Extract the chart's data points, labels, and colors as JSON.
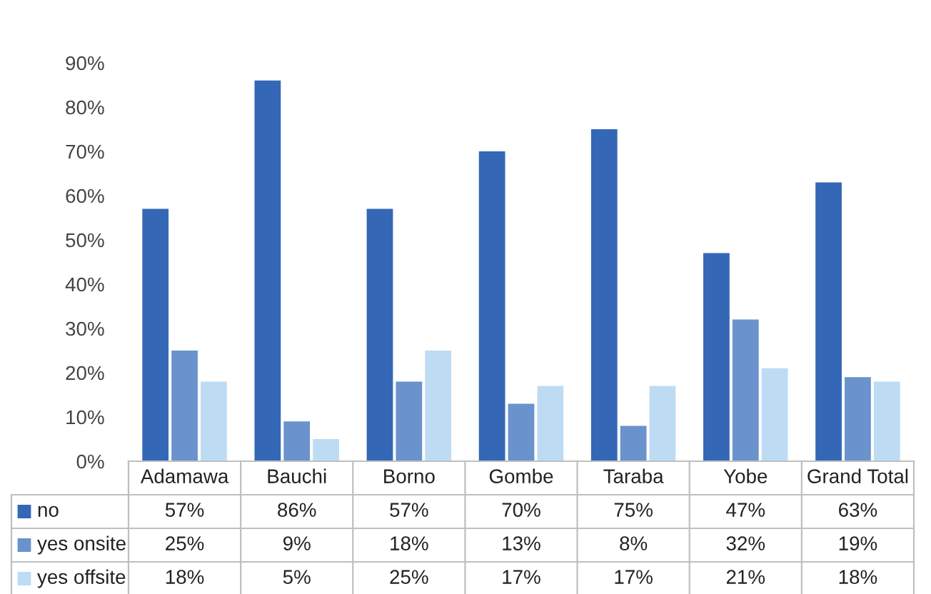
{
  "chart_data": {
    "type": "bar",
    "categories": [
      "Adamawa",
      "Bauchi",
      "Borno",
      "Gombe",
      "Taraba",
      "Yobe",
      "Grand Total"
    ],
    "series": [
      {
        "name": "no",
        "color": "#3468b6",
        "values": [
          57,
          86,
          57,
          70,
          75,
          47,
          63
        ],
        "value_labels": [
          "57%",
          "86%",
          "57%",
          "70%",
          "75%",
          "47%",
          "63%"
        ]
      },
      {
        "name": "yes onsite",
        "color": "#6a92cd",
        "values": [
          25,
          9,
          18,
          13,
          8,
          32,
          19
        ],
        "value_labels": [
          "25%",
          "9%",
          "18%",
          "13%",
          "8%",
          "32%",
          "19%"
        ]
      },
      {
        "name": "yes offsite",
        "color": "#bddcf4",
        "values": [
          18,
          5,
          25,
          17,
          17,
          21,
          18
        ],
        "value_labels": [
          "18%",
          "5%",
          "25%",
          "17%",
          "17%",
          "21%",
          "18%"
        ]
      }
    ],
    "ylim": [
      0,
      90
    ],
    "yticks": [
      {
        "value": 0,
        "label": "0%"
      },
      {
        "value": 10,
        "label": "10%"
      },
      {
        "value": 20,
        "label": "20%"
      },
      {
        "value": 30,
        "label": "30%"
      },
      {
        "value": 40,
        "label": "40%"
      },
      {
        "value": 50,
        "label": "50%"
      },
      {
        "value": 60,
        "label": "60%"
      },
      {
        "value": 70,
        "label": "70%"
      },
      {
        "value": 80,
        "label": "80%"
      },
      {
        "value": 90,
        "label": "90%"
      }
    ],
    "grid": false,
    "legend": "bottom"
  }
}
